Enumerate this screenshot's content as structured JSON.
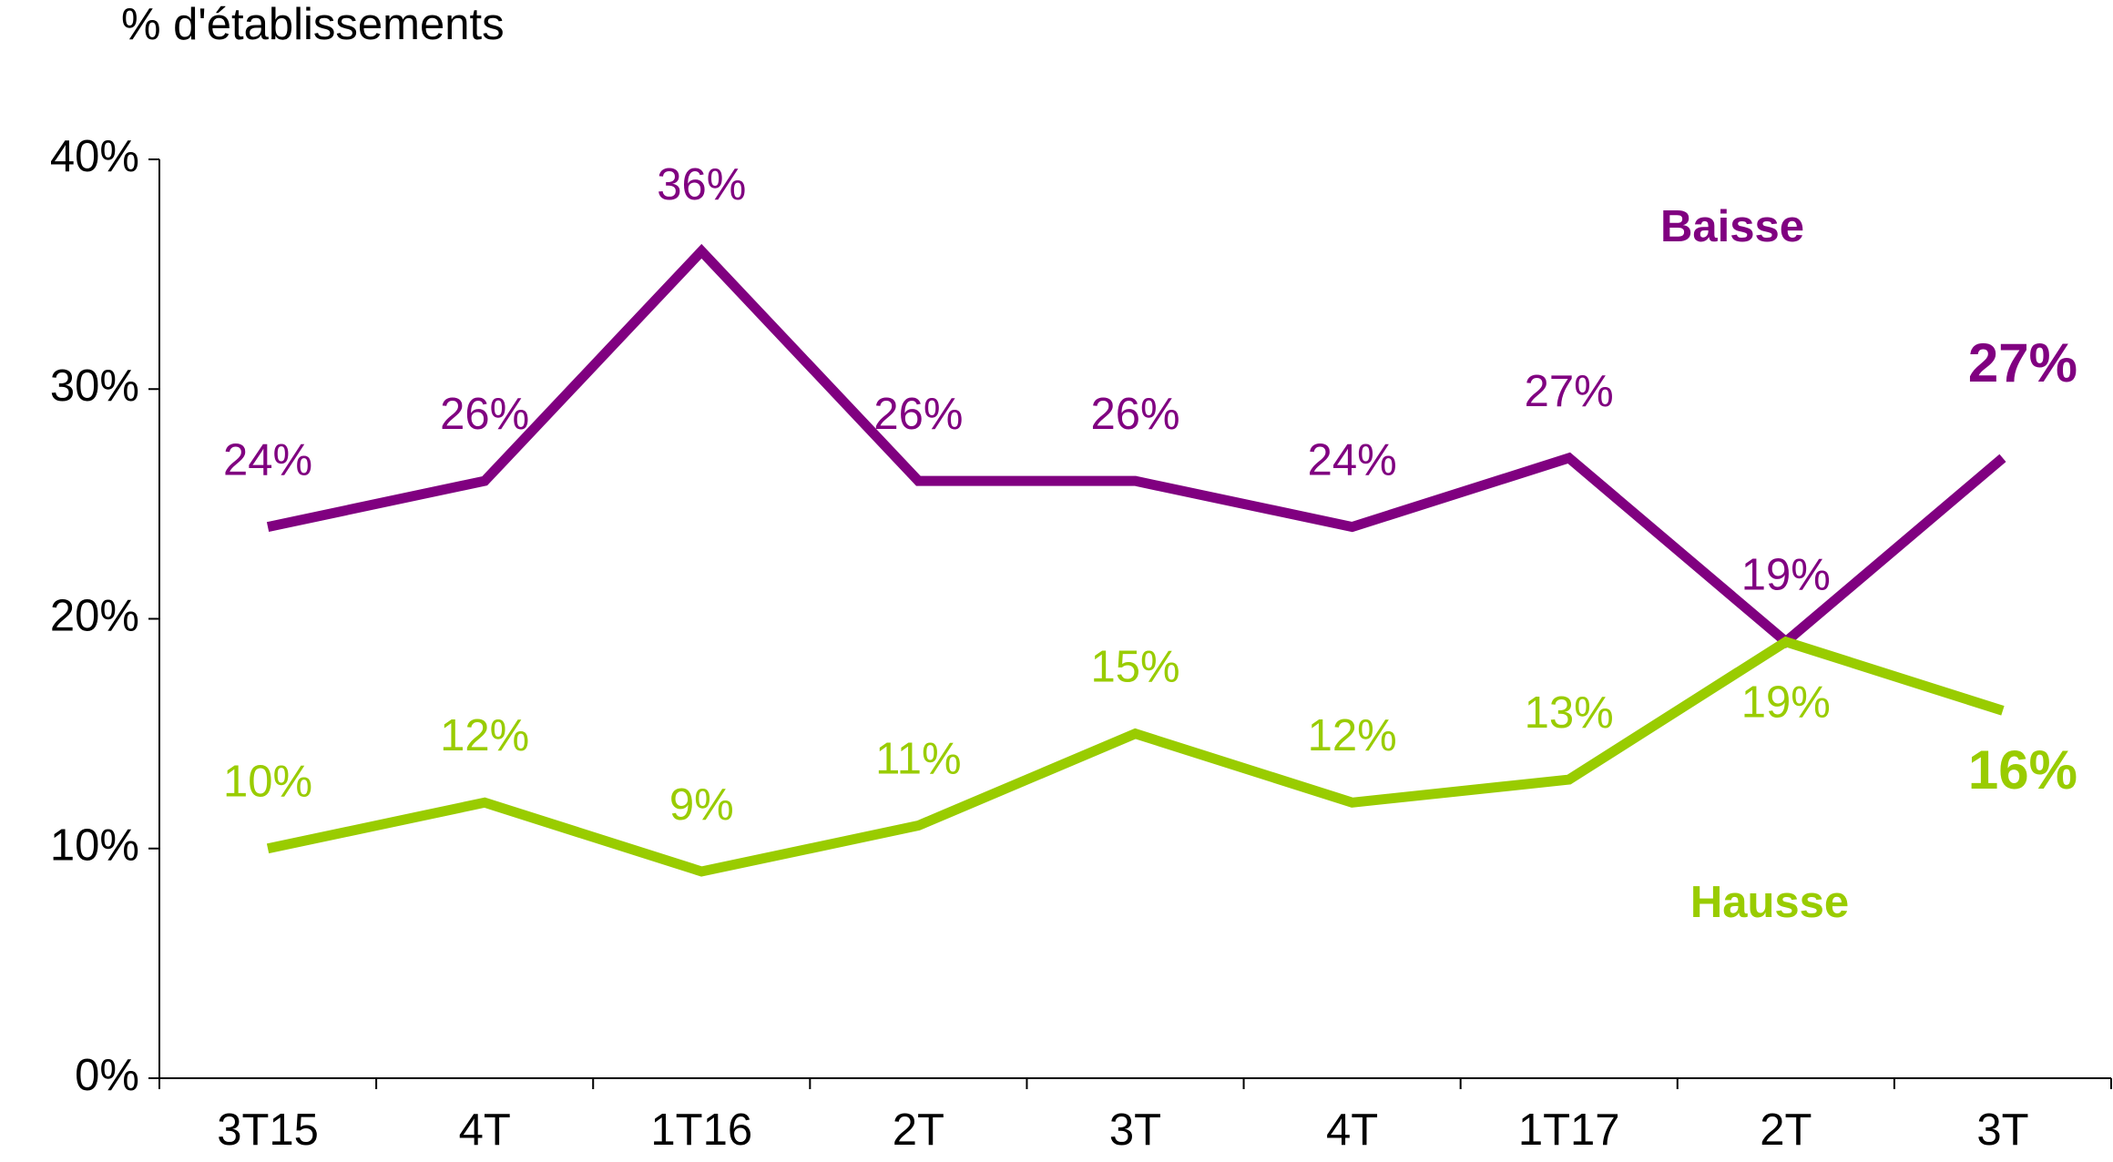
{
  "chart_data": {
    "type": "line",
    "y_label": "% d'établissements",
    "categories": [
      "3T15",
      "4T",
      "1T16",
      "2T",
      "3T",
      "4T",
      "1T17",
      "2T",
      "3T"
    ],
    "series": [
      {
        "name": "Baisse",
        "color": "#800080",
        "values": [
          24,
          26,
          36,
          26,
          26,
          24,
          27,
          19,
          27
        ],
        "value_labels": [
          "24%",
          "26%",
          "36%",
          "26%",
          "26%",
          "24%",
          "27%",
          "19%",
          "27%"
        ]
      },
      {
        "name": "Hausse",
        "color": "#99cc00",
        "values": [
          10,
          12,
          9,
          11,
          15,
          12,
          13,
          19,
          16
        ],
        "value_labels": [
          "10%",
          "12%",
          "9%",
          "11%",
          "15%",
          "12%",
          "13%",
          "19%",
          "16%"
        ]
      }
    ],
    "ylim": [
      0,
      40
    ],
    "yticks": [
      {
        "value": 0,
        "label": "0%"
      },
      {
        "value": 10,
        "label": "10%"
      },
      {
        "value": 20,
        "label": "20%"
      },
      {
        "value": 30,
        "label": "30%"
      },
      {
        "value": 40,
        "label": "40%"
      }
    ],
    "grid": false
  }
}
